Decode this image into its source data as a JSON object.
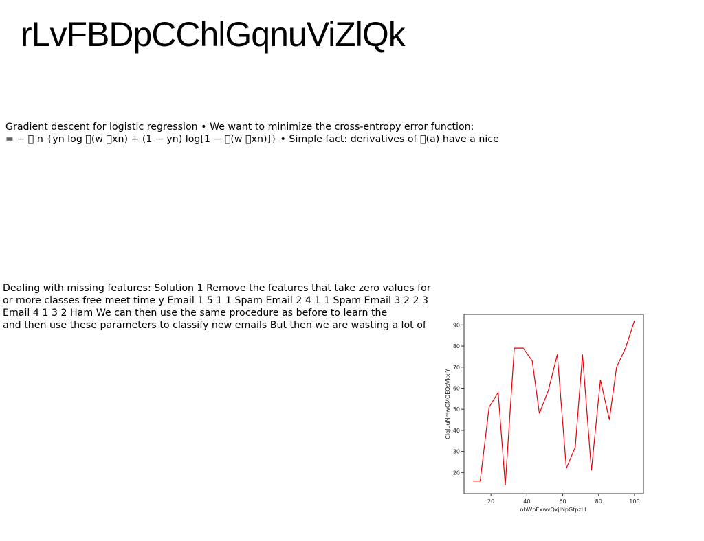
{
  "title": "rLvFBDpCChlGqnuViZlQk",
  "paragraph1": {
    "lines": [
      "Gradient descent for logistic regression • We want to minimize the cross-entropy error function:",
      "= − \u0000 n {yn log \u0000(w \u0000xn) + (1 − yn) log[1 − \u0000(w \u0000xn)]} • Simple fact: derivatives of \u0000(a) have a nice"
    ]
  },
  "paragraph2": {
    "lines": [
      "Dealing with missing features: Solution 1 Remove the features that take zero values for",
      "or more classes free meet time y Email 1 5 1 1 Spam Email 2 4 1 1 Spam Email 3 2 2 3",
      "Email 4 1 3 2 Ham We can then use the same procedure as before to learn the",
      "and then use these parameters to classify new emails But then we are wasting a lot of"
    ]
  },
  "chart_data": {
    "type": "line",
    "xlabel": "ohWpExwvQxjlNpGtpzLL",
    "ylabel": "ClqluuNmwGMOEQsVkxlY",
    "xlim": [
      5,
      105
    ],
    "ylim": [
      10,
      95
    ],
    "xticks": [
      20,
      40,
      60,
      80,
      100
    ],
    "yticks": [
      20,
      30,
      40,
      50,
      60,
      70,
      80,
      90
    ],
    "grid": false,
    "series": [
      {
        "color": "#e8000b",
        "x": [
          10,
          14,
          19,
          24,
          28,
          33,
          38,
          43,
          47,
          52,
          57,
          62,
          67,
          71,
          76,
          81,
          86,
          90,
          95,
          100
        ],
        "y": [
          16,
          16,
          51,
          58,
          14,
          79,
          79,
          73,
          48,
          59,
          76,
          22,
          32,
          76,
          21,
          64,
          45,
          70,
          79,
          92
        ]
      }
    ]
  }
}
